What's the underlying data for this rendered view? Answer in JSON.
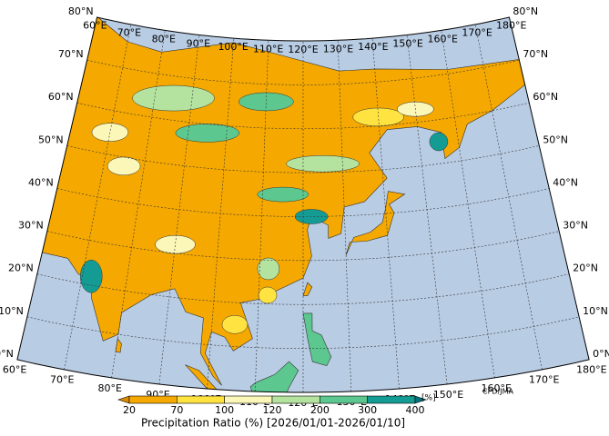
{
  "map": {
    "lon_labels": [
      "60°E",
      "70°E",
      "80°E",
      "90°E",
      "100°E",
      "110°E",
      "120°E",
      "130°E",
      "140°E",
      "150°E",
      "160°E",
      "170°E",
      "180°E"
    ],
    "lat_labels": [
      "0°N",
      "10°N",
      "20°N",
      "30°N",
      "40°N",
      "50°N",
      "60°N",
      "70°N",
      "80°N"
    ],
    "colorbar": {
      "ticks": [
        "20",
        "70",
        "100",
        "120",
        "200",
        "300",
        "400"
      ],
      "colors": [
        "#d98a00",
        "#f5a800",
        "#ffe340",
        "#fbf7b8",
        "#b4e3a0",
        "#5cc890",
        "#149c94",
        "#00707a"
      ],
      "unit": "[%]",
      "title": "Precipitation Ratio (%) [2026/01/01-2026/01/10]"
    },
    "credit": "CPD/JMA"
  }
}
